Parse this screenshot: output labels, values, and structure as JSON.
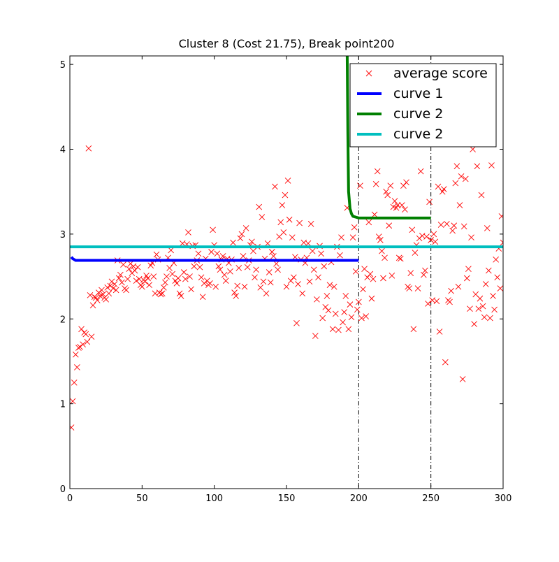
{
  "chart_data": {
    "type": "scatter",
    "title": "Cluster 8 (Cost 21.75), Break point200",
    "xlim": [
      0,
      300
    ],
    "ylim": [
      0,
      5.1
    ],
    "xticks": [
      0,
      50,
      100,
      150,
      200,
      250,
      300
    ],
    "yticks": [
      0,
      1,
      2,
      3,
      4,
      5
    ],
    "vlines": [
      200,
      250
    ],
    "legend": "upper right",
    "series": [
      {
        "name": "average score",
        "color": "#ff0000",
        "kind": "markers",
        "x": [
          1,
          2,
          3,
          4,
          5,
          6,
          7,
          8,
          9,
          10,
          11,
          12,
          13,
          14,
          15,
          16,
          17,
          18,
          19,
          20,
          21,
          22,
          23,
          24,
          25,
          26,
          27,
          28,
          29,
          30,
          31,
          32,
          33,
          34,
          35,
          36,
          37,
          38,
          39,
          40,
          41,
          42,
          43,
          44,
          45,
          46,
          47,
          48,
          49,
          50,
          51,
          52,
          53,
          54,
          55,
          56,
          57,
          58,
          59,
          60,
          61,
          62,
          63,
          64,
          65,
          66,
          67,
          68,
          69,
          70,
          71,
          72,
          73,
          74,
          75,
          76,
          77,
          78,
          79,
          80,
          81,
          82,
          83,
          84,
          85,
          86,
          87,
          88,
          89,
          90,
          91,
          92,
          93,
          94,
          95,
          96,
          97,
          98,
          99,
          100,
          101,
          102,
          103,
          104,
          105,
          106,
          107,
          108,
          109,
          110,
          111,
          112,
          113,
          114,
          115,
          116,
          117,
          118,
          119,
          120,
          121,
          122,
          123,
          124,
          125,
          126,
          127,
          128,
          129,
          130,
          131,
          132,
          133,
          134,
          135,
          136,
          137,
          138,
          139,
          140,
          141,
          142,
          143,
          144,
          145,
          146,
          147,
          148,
          149,
          150,
          151,
          152,
          153,
          154,
          155,
          156,
          157,
          158,
          159,
          160,
          161,
          162,
          163,
          164,
          165,
          166,
          167,
          168,
          169,
          170,
          171,
          172,
          173,
          174,
          175,
          176,
          177,
          178,
          179,
          180,
          181,
          182,
          183,
          184,
          185,
          186,
          187,
          188,
          189,
          190,
          191,
          192,
          193,
          194,
          195,
          196,
          197,
          198,
          199,
          200,
          201,
          202,
          203,
          204,
          205,
          206,
          207,
          208,
          209,
          210,
          211,
          212,
          213,
          214,
          215,
          216,
          217,
          218,
          219,
          220,
          221,
          222,
          223,
          224,
          225,
          226,
          227,
          228,
          229,
          230,
          231,
          232,
          233,
          234,
          235,
          236,
          237,
          238,
          239,
          240,
          241,
          242,
          243,
          244,
          245,
          246,
          247,
          248,
          249,
          250,
          251,
          252,
          253,
          254,
          255,
          256,
          257,
          258,
          259,
          260,
          261,
          262,
          263,
          264,
          265,
          266,
          267,
          268,
          269,
          270,
          271,
          272,
          273,
          274,
          275,
          276,
          277,
          278,
          279,
          280,
          281,
          282,
          283,
          284,
          285,
          286,
          287,
          288,
          289,
          290,
          291,
          292,
          293,
          294,
          295,
          296,
          297,
          298,
          299,
          300
        ],
        "values": [
          0.72,
          1.03,
          1.25,
          1.58,
          1.43,
          1.66,
          1.67,
          1.88,
          1.7,
          1.84,
          1.82,
          1.73,
          4.01,
          2.28,
          1.79,
          2.16,
          2.26,
          2.25,
          2.22,
          2.31,
          2.27,
          2.34,
          2.29,
          2.25,
          2.23,
          2.37,
          2.3,
          2.39,
          2.44,
          2.36,
          2.41,
          2.34,
          2.69,
          2.48,
          2.52,
          2.43,
          2.64,
          2.36,
          2.34,
          2.47,
          2.59,
          2.65,
          2.54,
          2.62,
          2.57,
          2.45,
          2.61,
          2.47,
          2.4,
          2.38,
          2.46,
          2.44,
          2.51,
          2.48,
          2.4,
          2.63,
          2.66,
          2.5,
          2.3,
          2.76,
          2.7,
          2.31,
          2.29,
          2.3,
          2.37,
          2.43,
          2.5,
          2.72,
          2.6,
          2.81,
          2.53,
          2.66,
          2.45,
          2.42,
          2.48,
          2.3,
          2.27,
          2.89,
          2.55,
          2.47,
          2.88,
          3.02,
          2.5,
          2.35,
          2.86,
          2.62,
          2.87,
          2.69,
          2.77,
          2.61,
          2.49,
          2.26,
          2.42,
          2.71,
          2.45,
          2.4,
          2.42,
          2.79,
          3.05,
          2.87,
          2.38,
          2.77,
          2.62,
          2.58,
          2.7,
          2.74,
          2.52,
          2.45,
          2.71,
          2.66,
          2.56,
          2.7,
          2.9,
          2.31,
          2.27,
          2.39,
          2.6,
          2.95,
          3.0,
          2.74,
          2.38,
          3.07,
          2.61,
          2.69,
          2.87,
          2.91,
          2.8,
          2.49,
          2.58,
          2.85,
          3.32,
          2.37,
          3.2,
          2.44,
          2.71,
          2.3,
          2.89,
          2.55,
          2.43,
          2.79,
          2.74,
          3.56,
          2.65,
          2.58,
          2.97,
          3.14,
          3.34,
          3.02,
          3.46,
          2.38,
          3.63,
          3.17,
          2.45,
          2.96,
          2.49,
          2.73,
          1.95,
          2.41,
          3.13,
          2.7,
          2.3,
          2.9,
          2.66,
          2.72,
          2.89,
          2.44,
          3.12,
          2.8,
          2.58,
          1.8,
          2.23,
          2.49,
          2.86,
          2.77,
          2.01,
          2.62,
          2.14,
          2.27,
          2.1,
          2.4,
          2.67,
          1.88,
          2.38,
          2.06,
          2.85,
          1.87,
          2.75,
          2.96,
          1.96,
          2.08,
          2.27,
          3.31,
          1.88,
          2.17,
          2.02,
          2.96,
          3.08,
          2.56,
          2.11,
          2.2,
          3.57,
          2.01,
          2.35,
          2.59,
          2.03,
          2.49,
          3.14,
          2.53,
          2.24,
          2.47,
          3.23,
          3.59,
          3.74,
          2.97,
          2.93,
          2.8,
          2.48,
          2.72,
          3.5,
          3.46,
          3.1,
          3.57,
          2.51,
          3.32,
          3.39,
          3.31,
          3.34,
          2.72,
          2.71,
          3.34,
          3.57,
          3.29,
          3.61,
          2.38,
          2.36,
          2.54,
          3.05,
          1.88,
          2.78,
          2.87,
          2.36,
          2.95,
          3.74,
          2.98,
          2.52,
          2.57,
          2.97,
          2.18,
          3.38,
          2.93,
          2.22,
          3.0,
          2.91,
          2.21,
          3.56,
          1.85,
          3.11,
          3.5,
          3.53,
          1.49,
          3.12,
          2.22,
          2.2,
          2.33,
          3.04,
          3.1,
          3.6,
          3.8,
          2.38,
          3.34,
          3.68,
          1.29,
          3.09,
          3.65,
          2.48,
          2.59,
          2.12,
          2.96,
          4.0,
          1.94,
          2.29,
          3.8,
          2.12,
          2.24,
          3.46,
          2.15,
          2.02,
          2.41,
          3.07,
          2.57,
          2.01,
          3.81,
          2.27,
          2.11,
          2.7,
          2.49,
          2.83,
          2.36,
          3.21,
          2.9
        ]
      },
      {
        "name": "curve 1",
        "color": "#0000ff",
        "kind": "line",
        "x": [
          1,
          2,
          3,
          4,
          6,
          200
        ],
        "values": [
          2.73,
          2.71,
          2.7,
          2.69,
          2.69,
          2.69
        ]
      },
      {
        "name": "curve 2",
        "color": "#008000",
        "kind": "line",
        "x": [
          192,
          192.5,
          193,
          194,
          195,
          196,
          198,
          200,
          250
        ],
        "values": [
          5.2,
          4.2,
          3.5,
          3.3,
          3.24,
          3.21,
          3.2,
          3.19,
          3.19
        ]
      },
      {
        "name": "curve 2",
        "color": "#00bfbf",
        "kind": "line",
        "x": [
          0,
          300
        ],
        "values": [
          2.85,
          2.85
        ]
      }
    ]
  }
}
